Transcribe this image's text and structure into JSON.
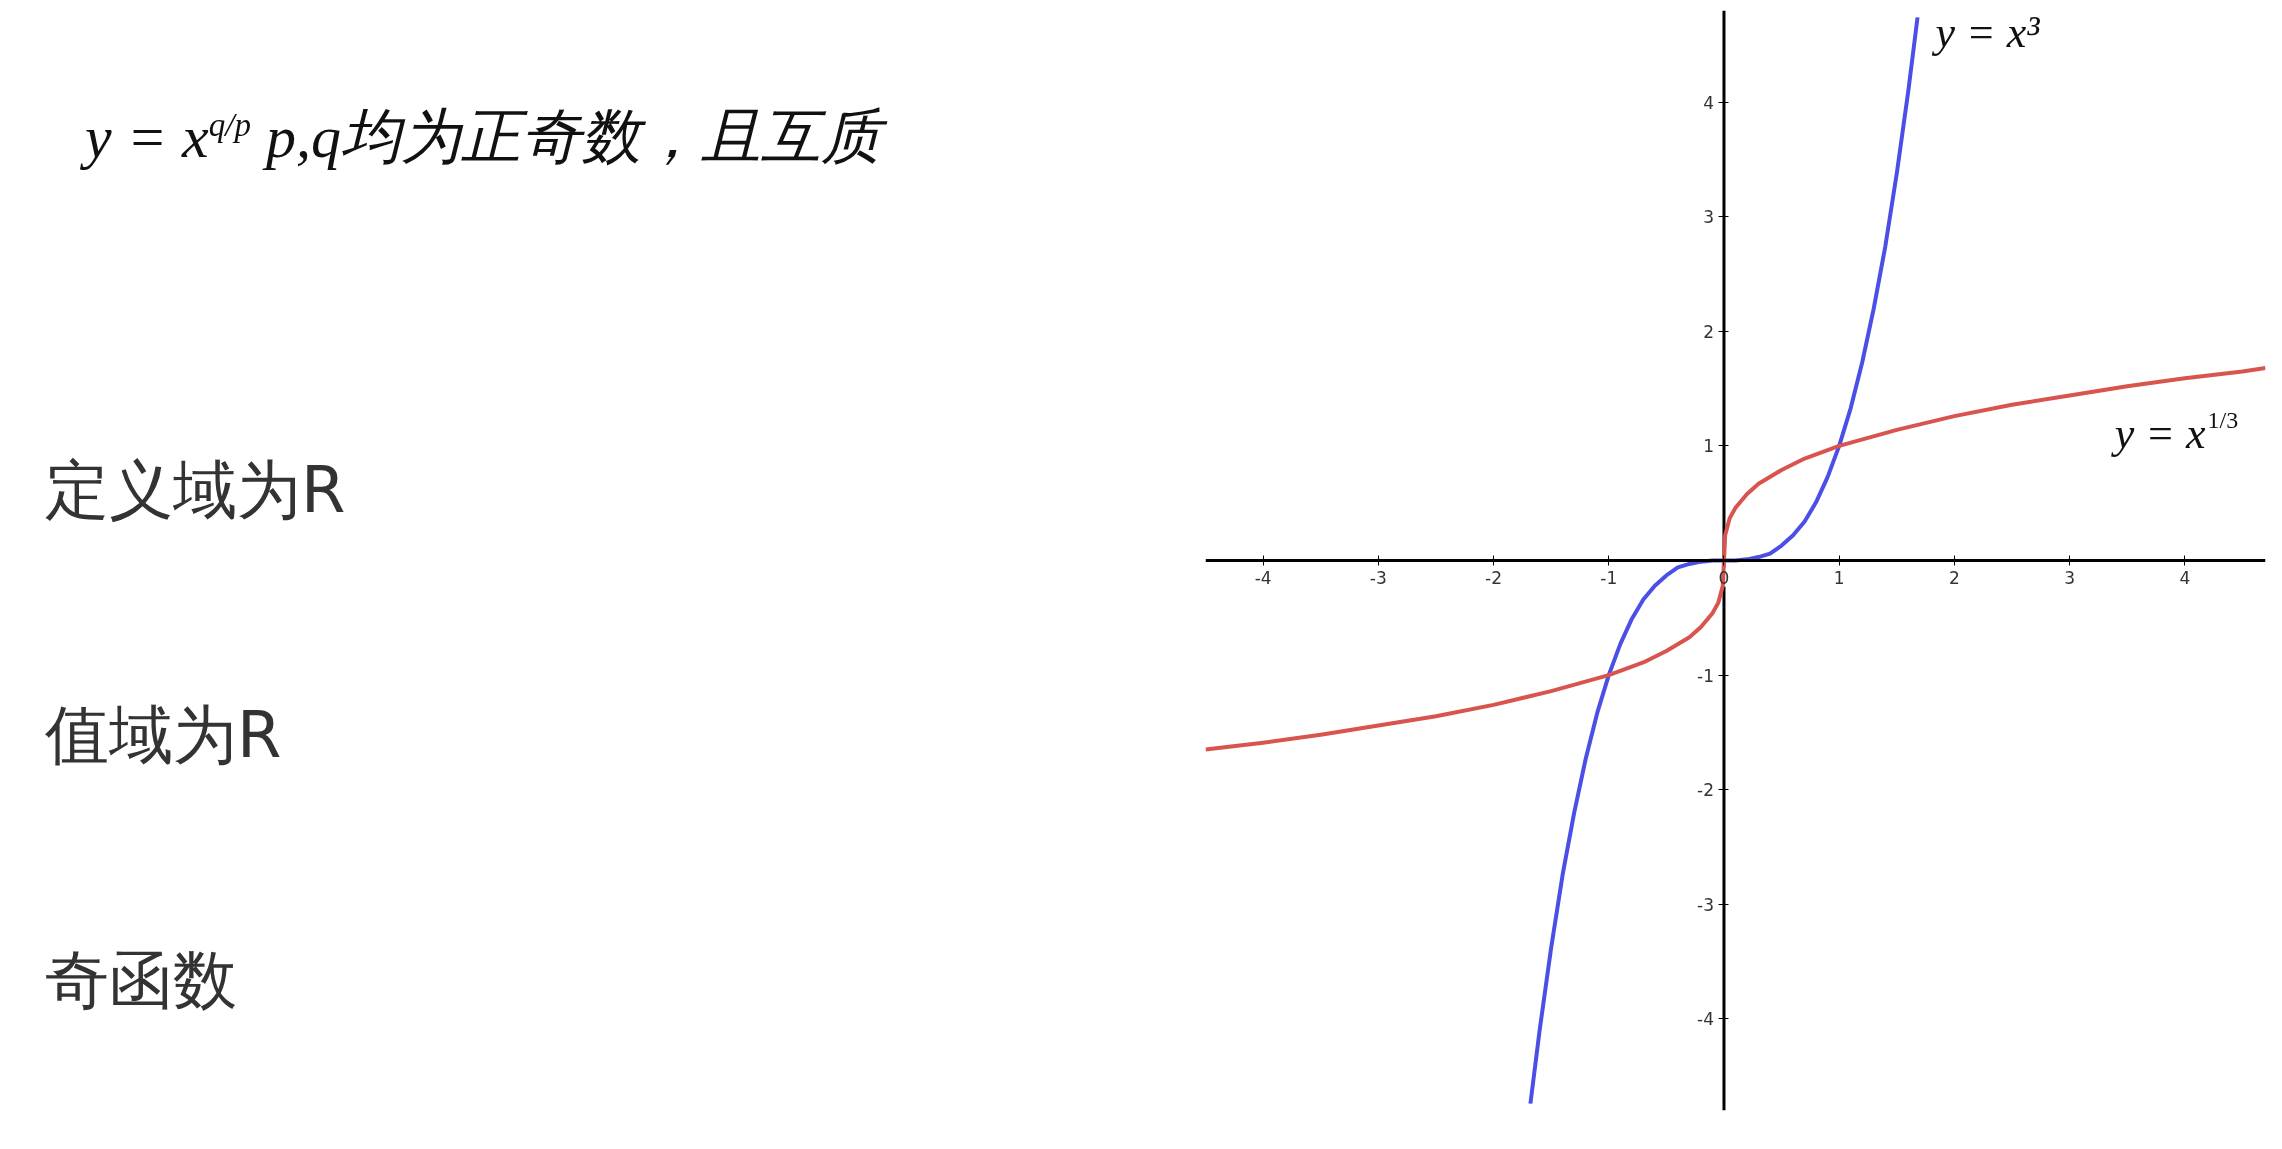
{
  "chart_data": {
    "type": "line",
    "title": "y = x$^{q/p}$    p,q均为正奇数，且互质",
    "annotations": [
      "定义域为R",
      "值域为R",
      "奇函数"
    ],
    "xlim": [
      -4.5,
      4.7
    ],
    "ylim": [
      -4.8,
      4.8
    ],
    "xticks": [
      -4,
      -3,
      -2,
      -1,
      0,
      1,
      2,
      3,
      4
    ],
    "yticks": [
      -4,
      -3,
      -2,
      -1,
      1,
      2,
      3,
      4
    ],
    "series": [
      {
        "name": "y = x³",
        "color": "#4b4fe6",
        "x": [
          -1.68,
          -1.6,
          -1.5,
          -1.4,
          -1.3,
          -1.2,
          -1.1,
          -1,
          -0.9,
          -0.8,
          -0.7,
          -0.6,
          -0.5,
          -0.4,
          -0.3,
          -0.2,
          -0.1,
          0,
          0.1,
          0.2,
          0.3,
          0.4,
          0.5,
          0.6,
          0.7,
          0.8,
          0.9,
          1,
          1.1,
          1.2,
          1.3,
          1.4,
          1.5,
          1.6,
          1.68
        ],
        "values": [
          -4.74,
          -4.1,
          -3.38,
          -2.74,
          -2.2,
          -1.73,
          -1.33,
          -1,
          -0.73,
          -0.51,
          -0.34,
          -0.22,
          -0.13,
          -0.06,
          -0.03,
          -0.01,
          0,
          0,
          0,
          0.01,
          0.03,
          0.06,
          0.13,
          0.22,
          0.34,
          0.51,
          0.73,
          1,
          1.33,
          1.73,
          2.2,
          2.74,
          3.38,
          4.1,
          4.74
        ]
      },
      {
        "name": "y = x$^{1/3}$",
        "color": "#d9534f",
        "x": [
          -4.5,
          -4,
          -3.5,
          -3,
          -2.5,
          -2,
          -1.5,
          -1,
          -0.7,
          -0.5,
          -0.3,
          -0.2,
          -0.1,
          -0.05,
          -0.01,
          0,
          0.01,
          0.05,
          0.1,
          0.2,
          0.3,
          0.5,
          0.7,
          1,
          1.5,
          2,
          2.5,
          3,
          3.5,
          4,
          4.5,
          4.7
        ],
        "values": [
          -1.65,
          -1.59,
          -1.52,
          -1.44,
          -1.36,
          -1.26,
          -1.14,
          -1,
          -0.89,
          -0.79,
          -0.67,
          -0.58,
          -0.46,
          -0.37,
          -0.22,
          0,
          0.22,
          0.37,
          0.46,
          0.58,
          0.67,
          0.79,
          0.89,
          1,
          1.14,
          1.26,
          1.36,
          1.44,
          1.52,
          1.59,
          1.65,
          1.68
        ]
      }
    ]
  }
}
